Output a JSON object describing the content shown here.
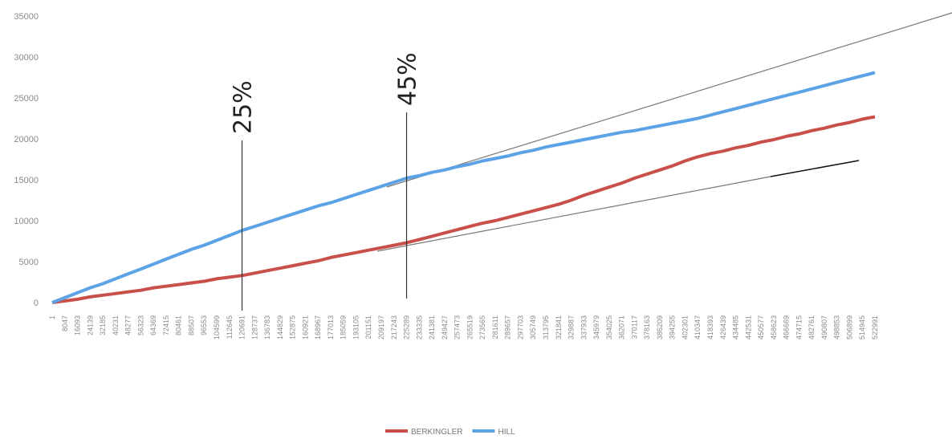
{
  "chart_data": {
    "type": "line",
    "categories": [
      "1",
      "8047",
      "16093",
      "24139",
      "32185",
      "40231",
      "48277",
      "56323",
      "64369",
      "72415",
      "80461",
      "88507",
      "96553",
      "104599",
      "112645",
      "120691",
      "128737",
      "136783",
      "144829",
      "152875",
      "160921",
      "168967",
      "177013",
      "185059",
      "193105",
      "201151",
      "209197",
      "217243",
      "225289",
      "233335",
      "241381",
      "249427",
      "257473",
      "265519",
      "273565",
      "281611",
      "289657",
      "297703",
      "305749",
      "313795",
      "321841",
      "329887",
      "337933",
      "345979",
      "354025",
      "362071",
      "370117",
      "378163",
      "386209",
      "394255",
      "402301",
      "410347",
      "418393",
      "426439",
      "434485",
      "442531",
      "450577",
      "458623",
      "466669",
      "474715",
      "482761",
      "490807",
      "498853",
      "506899",
      "514945",
      "522991"
    ],
    "series": [
      {
        "name": "BERKINGLER",
        "color": "#c9504a",
        "values": [
          0,
          200,
          400,
          700,
          900,
          1100,
          1300,
          1500,
          1800,
          2000,
          2200,
          2400,
          2600,
          2900,
          3100,
          3300,
          3600,
          3900,
          4200,
          4500,
          4800,
          5100,
          5500,
          5800,
          6100,
          6400,
          6700,
          7000,
          7300,
          7700,
          8100,
          8500,
          8900,
          9300,
          9700,
          10000,
          10400,
          10800,
          11200,
          11600,
          12000,
          12500,
          13100,
          13600,
          14100,
          14600,
          15200,
          15700,
          16200,
          16700,
          17300,
          17800,
          18200,
          18500,
          18900,
          19200,
          19600,
          19900,
          20300,
          20600,
          21000,
          21300,
          21700,
          22000,
          22400,
          22700
        ]
      },
      {
        "name": "HILL",
        "color": "#5ba3e6",
        "values": [
          0,
          600,
          1200,
          1800,
          2300,
          2900,
          3500,
          4100,
          4700,
          5300,
          5900,
          6500,
          7000,
          7600,
          8200,
          8800,
          9300,
          9800,
          10300,
          10800,
          11300,
          11800,
          12200,
          12700,
          13200,
          13700,
          14200,
          14700,
          15200,
          15500,
          15900,
          16200,
          16600,
          16900,
          17300,
          17600,
          17900,
          18300,
          18600,
          19000,
          19300,
          19600,
          19900,
          20200,
          20500,
          20800,
          21000,
          21300,
          21600,
          21900,
          22200,
          22500,
          22900,
          23300,
          23700,
          24100,
          24500,
          24900,
          25300,
          25700,
          26100,
          26500,
          26900,
          27300,
          27700,
          28100
        ]
      }
    ],
    "ylim": [
      0,
      35000
    ],
    "yticks": [
      0,
      5000,
      10000,
      15000,
      20000,
      25000,
      30000,
      35000
    ],
    "grid": false,
    "legend": "bottom",
    "annotations": [
      {
        "text": "25%",
        "x": "120691"
      },
      {
        "text": "45%",
        "x": "225289"
      }
    ]
  }
}
